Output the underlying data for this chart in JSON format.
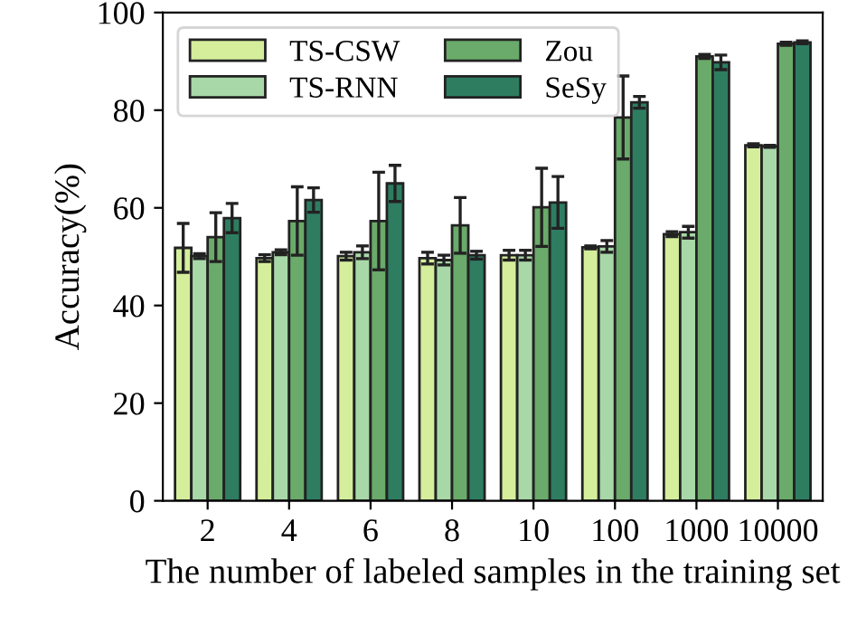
{
  "chart_data": {
    "type": "bar",
    "xlabel": "The number of labeled samples in the training set",
    "ylabel": "Accuracy(%)",
    "categories": [
      "2",
      "4",
      "6",
      "8",
      "10",
      "100",
      "1000",
      "10000"
    ],
    "series": [
      {
        "name": "TS-CSW",
        "color": "#d4ee9c",
        "values": [
          51.8,
          49.7,
          50.1,
          49.7,
          50.3,
          51.9,
          54.6,
          72.8
        ],
        "errors": [
          5,
          0.7,
          0.8,
          1.2,
          1,
          0.3,
          0.5,
          0.3
        ]
      },
      {
        "name": "TS-RNN",
        "color": "#a8d8a8",
        "values": [
          50.1,
          50.9,
          50.9,
          49.3,
          50.3,
          52.1,
          55,
          72.6
        ],
        "errors": [
          0.5,
          0.5,
          1.3,
          1,
          1,
          1.2,
          1.2,
          0.2
        ]
      },
      {
        "name": "Zou",
        "color": "#6aaa6a",
        "values": [
          54,
          57.3,
          57.3,
          56.4,
          60.1,
          78.5,
          91,
          93.6
        ],
        "errors": [
          5,
          7,
          10,
          5.7,
          8,
          8.5,
          0.4,
          0.3
        ]
      },
      {
        "name": "SeSy",
        "color": "#2e7d61",
        "values": [
          57.9,
          61.6,
          65,
          50.3,
          61.1,
          81.6,
          89.8,
          93.9
        ],
        "errors": [
          3,
          2.5,
          3.7,
          0.8,
          5.3,
          1.2,
          1.5,
          0.3
        ]
      }
    ],
    "ylim": [
      0,
      100
    ],
    "yticks": [
      0,
      20,
      40,
      60,
      80,
      100
    ],
    "grid": false,
    "legend": "top left"
  }
}
